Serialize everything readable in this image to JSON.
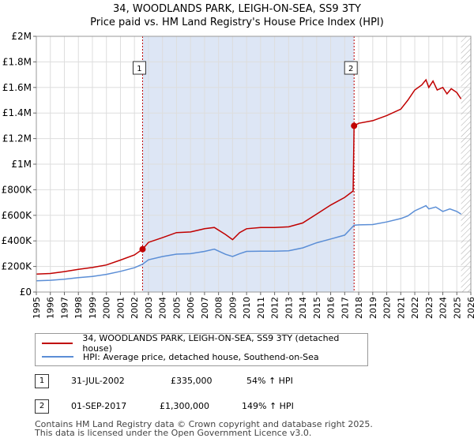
{
  "title": {
    "line1": "34, WOODLANDS PARK, LEIGH-ON-SEA, SS9 3TY",
    "line2": "Price paid vs. HM Land Registry's House Price Index (HPI)"
  },
  "colors": {
    "property": "#c00000",
    "hpi": "#5b8ed6",
    "highlight": "#dde6f5",
    "grid": "#dddddd",
    "marker": "#c00000"
  },
  "chart_data": {
    "type": "line",
    "title": "34, WOODLANDS PARK, LEIGH-ON-SEA, SS9 3TY — Price paid vs. HM Land Registry's House Price Index (HPI)",
    "xlim": [
      1995,
      2026
    ],
    "ylim": [
      0,
      2000000
    ],
    "x_ticks": [
      1995,
      1996,
      1997,
      1998,
      1999,
      2000,
      2001,
      2002,
      2003,
      2004,
      2005,
      2006,
      2007,
      2008,
      2009,
      2010,
      2011,
      2012,
      2013,
      2014,
      2015,
      2016,
      2017,
      2018,
      2019,
      2020,
      2021,
      2022,
      2023,
      2024,
      2025,
      2026
    ],
    "y_ticks": [
      {
        "v": 0,
        "label": "£0"
      },
      {
        "v": 200000,
        "label": "£200K"
      },
      {
        "v": 400000,
        "label": "£400K"
      },
      {
        "v": 600000,
        "label": "£600K"
      },
      {
        "v": 800000,
        "label": "£800K"
      },
      {
        "v": 1000000,
        "label": "£1M"
      },
      {
        "v": 1200000,
        "label": "£1.2M"
      },
      {
        "v": 1400000,
        "label": "£1.4M"
      },
      {
        "v": 1600000,
        "label": "£1.6M"
      },
      {
        "v": 1800000,
        "label": "£1.8M"
      },
      {
        "v": 2000000,
        "label": "£2M"
      }
    ],
    "series": [
      {
        "name": "34, WOODLANDS PARK, LEIGH-ON-SEA, SS9 3TY (detached house)",
        "color": "#c00000",
        "x": [
          1995,
          1996,
          1997,
          1998,
          1999,
          2000,
          2001,
          2002,
          2002.58,
          2003,
          2004,
          2005,
          2006,
          2007,
          2007.7,
          2008.5,
          2009,
          2009.5,
          2010,
          2011,
          2012,
          2013,
          2014,
          2015,
          2016,
          2017,
          2017.6,
          2017.67,
          2017.75,
          2018,
          2019,
          2020,
          2021,
          2021.5,
          2022,
          2022.5,
          2022.8,
          2023,
          2023.3,
          2023.6,
          2024,
          2024.3,
          2024.6,
          2025,
          2025.3
        ],
        "y": [
          140000,
          145000,
          160000,
          178000,
          192000,
          212000,
          250000,
          290000,
          335000,
          388000,
          425000,
          465000,
          470000,
          495000,
          505000,
          450000,
          410000,
          465000,
          495000,
          505000,
          505000,
          510000,
          540000,
          610000,
          680000,
          740000,
          790000,
          1300000,
          1305000,
          1320000,
          1340000,
          1380000,
          1430000,
          1500000,
          1580000,
          1620000,
          1660000,
          1600000,
          1650000,
          1580000,
          1600000,
          1550000,
          1590000,
          1560000,
          1510000
        ]
      },
      {
        "name": "HPI: Average price, detached house, Southend-on-Sea",
        "color": "#5b8ed6",
        "x": [
          1995,
          1996,
          1997,
          1998,
          1999,
          2000,
          2001,
          2002,
          2002.58,
          2003,
          2004,
          2005,
          2006,
          2007,
          2007.7,
          2008.5,
          2009,
          2009.5,
          2010,
          2011,
          2012,
          2013,
          2014,
          2015,
          2016,
          2017,
          2017.67,
          2018,
          2019,
          2020,
          2021,
          2021.5,
          2022,
          2022.5,
          2022.8,
          2023,
          2023.5,
          2024,
          2024.5,
          2025,
          2025.3
        ],
        "y": [
          88000,
          92000,
          100000,
          113000,
          122000,
          138000,
          162000,
          190000,
          218000,
          252000,
          278000,
          296000,
          300000,
          318000,
          335000,
          295000,
          278000,
          300000,
          318000,
          320000,
          320000,
          323000,
          345000,
          385000,
          415000,
          445000,
          522000,
          525000,
          528000,
          548000,
          575000,
          595000,
          635000,
          660000,
          675000,
          650000,
          665000,
          630000,
          650000,
          630000,
          610000
        ]
      }
    ],
    "sales": [
      {
        "id": "1",
        "x": 2002.58,
        "y": 335000
      },
      {
        "id": "2",
        "x": 2017.67,
        "y": 1300000
      }
    ],
    "annotations": [
      {
        "label": "1",
        "x": 2002.58
      },
      {
        "label": "2",
        "x": 2017.67
      }
    ]
  },
  "legend": {
    "property_label": "34, WOODLANDS PARK, LEIGH-ON-SEA, SS9 3TY (detached house)",
    "hpi_label": "HPI: Average price, detached house, Southend-on-Sea"
  },
  "transactions": [
    {
      "num": "1",
      "date": "31-JUL-2002",
      "price": "£335,000",
      "hpi": "54% ↑ HPI"
    },
    {
      "num": "2",
      "date": "01-SEP-2017",
      "price": "£1,300,000",
      "hpi": "149% ↑ HPI"
    }
  ],
  "footer": {
    "line1": "Contains HM Land Registry data © Crown copyright and database right 2025.",
    "line2": "This data is licensed under the Open Government Licence v3.0."
  }
}
